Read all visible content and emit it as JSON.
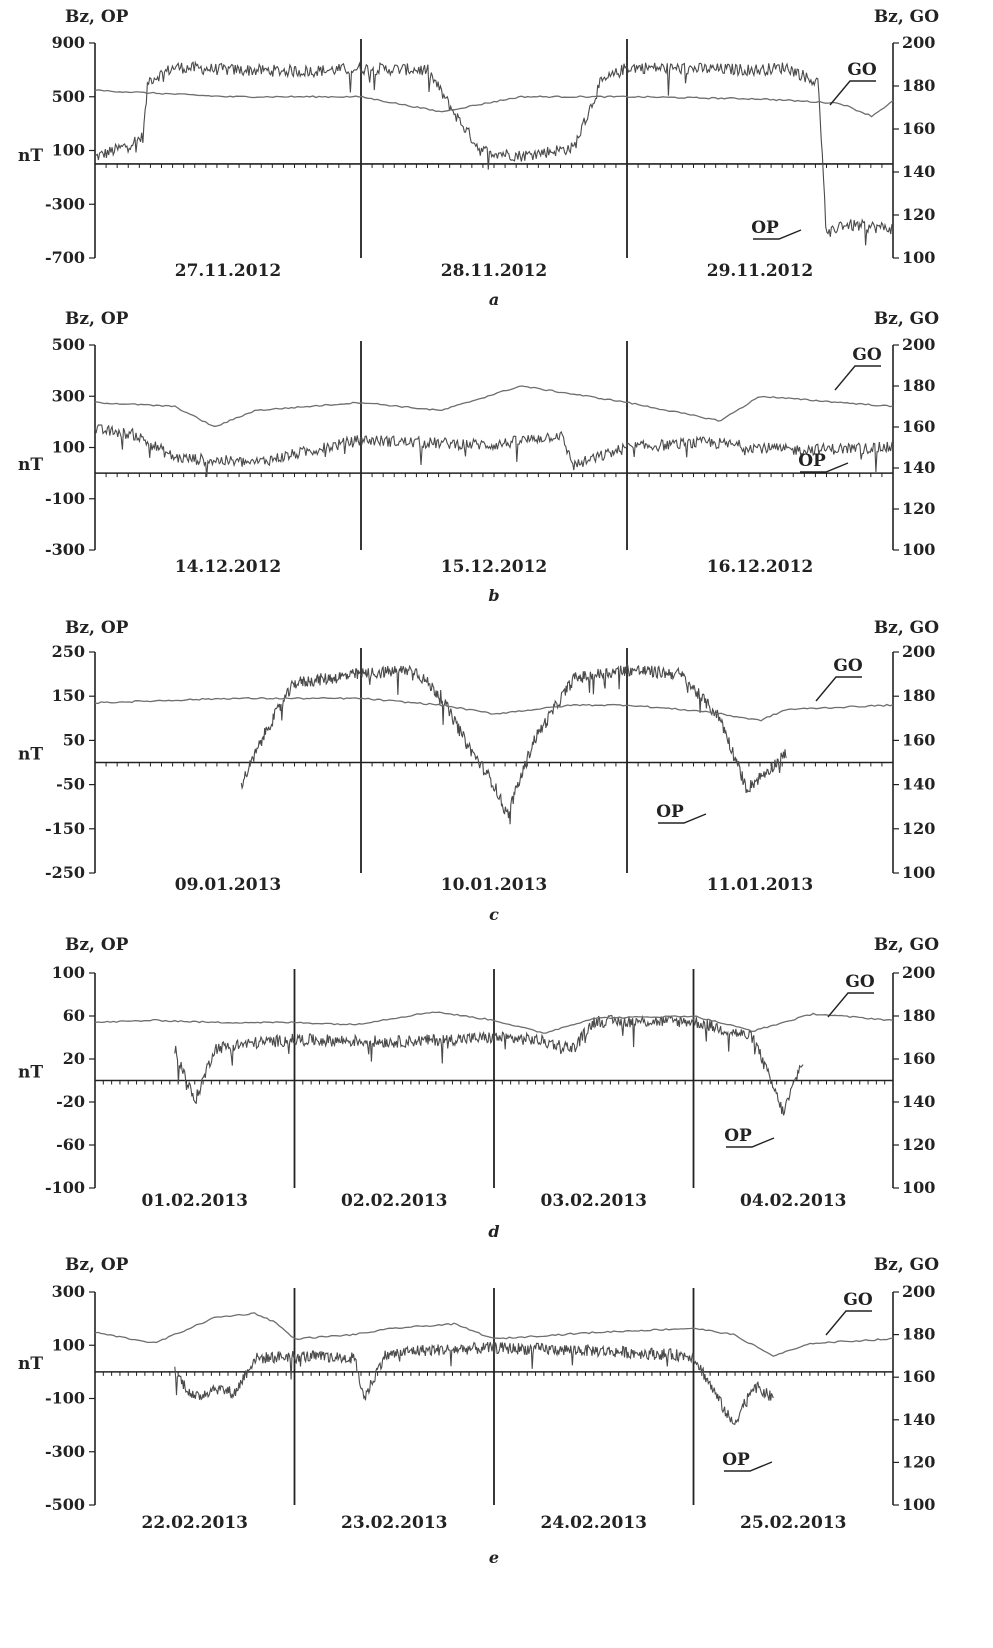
{
  "chart_data": [
    {
      "type": "line",
      "panel_letter": "a",
      "left_axis_title": "Bz, OP",
      "right_axis_title": "Bz, GO",
      "unit_label": "nT",
      "left_ticks": [
        "900",
        "500",
        "100",
        "-300",
        "-700"
      ],
      "right_ticks": [
        "200",
        "180",
        "160",
        "140",
        "120",
        "100"
      ],
      "ylim_left": [
        -700,
        900
      ],
      "ylim_right": [
        100,
        200
      ],
      "days": [
        "27.11.2012",
        "28.11.2012",
        "29.11.2012"
      ],
      "x_range_days": [
        0,
        3
      ],
      "series": [
        {
          "name": "OP",
          "axis": "left",
          "x": [
            0,
            0.1,
            0.18,
            0.2,
            0.3,
            0.5,
            0.8,
            1.0,
            1.25,
            1.35,
            1.45,
            1.6,
            1.8,
            1.9,
            2.0,
            2.2,
            2.5,
            2.6,
            2.72,
            2.75,
            2.8,
            3.0
          ],
          "y": [
            50,
            120,
            200,
            620,
            720,
            700,
            690,
            710,
            700,
            380,
            100,
            60,
            120,
            600,
            720,
            710,
            700,
            720,
            600,
            -550,
            -450,
            -480
          ]
        },
        {
          "name": "GO",
          "axis": "right",
          "x": [
            0,
            0.5,
            1.0,
            1.3,
            1.6,
            2.0,
            2.5,
            2.8,
            2.92,
            3.0
          ],
          "y": [
            178,
            175,
            175,
            168,
            175,
            175,
            174,
            172,
            166,
            173
          ]
        }
      ]
    },
    {
      "type": "line",
      "panel_letter": "b",
      "left_axis_title": "Bz, OP",
      "right_axis_title": "Bz, GO",
      "unit_label": "nT",
      "left_ticks": [
        "500",
        "300",
        "100",
        "-100",
        "-300"
      ],
      "right_ticks": [
        "200",
        "180",
        "160",
        "140",
        "120",
        "100"
      ],
      "ylim_left": [
        -300,
        500
      ],
      "ylim_right": [
        100,
        200
      ],
      "days": [
        "14.12.2012",
        "15.12.2012",
        "16.12.2012"
      ],
      "x_range_days": [
        0,
        3
      ],
      "series": [
        {
          "name": "OP",
          "axis": "left",
          "x": [
            0,
            0.15,
            0.3,
            0.6,
            1.0,
            1.2,
            1.5,
            1.75,
            1.8,
            2.0,
            2.3,
            2.6,
            3.0
          ],
          "y": [
            170,
            150,
            60,
            40,
            130,
            120,
            110,
            150,
            30,
            100,
            120,
            90,
            100
          ]
        },
        {
          "name": "GO",
          "axis": "right",
          "x": [
            0,
            0.3,
            0.45,
            0.6,
            1.0,
            1.3,
            1.6,
            2.0,
            2.35,
            2.5,
            3.0
          ],
          "y": [
            172,
            170,
            160,
            168,
            172,
            168,
            180,
            172,
            163,
            175,
            170
          ]
        }
      ]
    },
    {
      "type": "line",
      "panel_letter": "c",
      "left_axis_title": "Bz, OP",
      "right_axis_title": "Bz, GO",
      "unit_label": "nT",
      "left_ticks": [
        "250",
        "150",
        "50",
        "-50",
        "-150",
        "-250"
      ],
      "right_ticks": [
        "200",
        "180",
        "160",
        "140",
        "120",
        "100"
      ],
      "ylim_left": [
        -250,
        250
      ],
      "ylim_right": [
        100,
        200
      ],
      "days": [
        "09.01.2013",
        "10.01.2013",
        "11.01.2013"
      ],
      "x_range_days": [
        0,
        3
      ],
      "series": [
        {
          "name": "OP",
          "axis": "left",
          "x": [
            0.55,
            0.65,
            0.75,
            1.0,
            1.2,
            1.3,
            1.4,
            1.5,
            1.55,
            1.65,
            1.8,
            2.0,
            2.2,
            2.35,
            2.45,
            2.6
          ],
          "y": [
            -50,
            80,
            180,
            200,
            210,
            150,
            40,
            -50,
            -120,
            50,
            190,
            210,
            200,
            100,
            -60,
            20
          ]
        },
        {
          "name": "GO",
          "axis": "right",
          "x": [
            0,
            0.5,
            1.0,
            1.3,
            1.5,
            1.8,
            2.0,
            2.3,
            2.5,
            2.6,
            3.0
          ],
          "y": [
            177,
            179,
            179,
            176,
            172,
            176,
            176,
            173,
            169,
            174,
            176
          ]
        }
      ]
    },
    {
      "type": "line",
      "panel_letter": "d",
      "left_axis_title": "Bz, OP",
      "right_axis_title": "Bz, GO",
      "unit_label": "nT",
      "left_ticks": [
        "100",
        "60",
        "20",
        "-20",
        "-60",
        "-100"
      ],
      "right_ticks": [
        "200",
        "180",
        "160",
        "140",
        "120",
        "100"
      ],
      "ylim_left": [
        -100,
        100
      ],
      "ylim_right": [
        100,
        200
      ],
      "days": [
        "01.02.2013",
        "02.02.2013",
        "03.02.2013",
        "04.02.2013"
      ],
      "x_range_days": [
        0,
        4
      ],
      "series": [
        {
          "name": "OP",
          "axis": "left",
          "x": [
            0.4,
            0.5,
            0.6,
            0.8,
            1.0,
            1.5,
            2.0,
            2.2,
            2.4,
            2.5,
            2.8,
            3.0,
            3.3,
            3.45,
            3.55
          ],
          "y": [
            30,
            -20,
            30,
            35,
            38,
            36,
            40,
            38,
            30,
            55,
            55,
            55,
            40,
            -30,
            20
          ]
        },
        {
          "name": "GO",
          "axis": "right",
          "x": [
            0,
            0.3,
            0.6,
            1.0,
            1.3,
            1.7,
            2.0,
            2.25,
            2.5,
            3.0,
            3.3,
            3.6,
            4.0
          ],
          "y": [
            177,
            178,
            177,
            177,
            176,
            182,
            178,
            172,
            179,
            180,
            173,
            181,
            178
          ]
        }
      ]
    },
    {
      "type": "line",
      "panel_letter": "e",
      "left_axis_title": "Bz, OP",
      "right_axis_title": "Bz, GO",
      "unit_label": "nT",
      "left_ticks": [
        "300",
        "100",
        "-100",
        "-300",
        "-500"
      ],
      "right_ticks": [
        "200",
        "180",
        "160",
        "140",
        "120",
        "100"
      ],
      "ylim_left": [
        -500,
        300
      ],
      "ylim_right": [
        100,
        200
      ],
      "days": [
        "22.02.2013",
        "23.02.2013",
        "24.02.2013",
        "25.02.2013"
      ],
      "x_range_days": [
        0,
        4
      ],
      "series": [
        {
          "name": "OP",
          "axis": "left",
          "x": [
            0.4,
            0.5,
            0.6,
            0.7,
            0.8,
            1.0,
            1.3,
            1.35,
            1.45,
            1.6,
            2.0,
            2.5,
            3.0,
            3.2,
            3.3,
            3.4
          ],
          "y": [
            0,
            -100,
            -60,
            -80,
            50,
            60,
            50,
            -100,
            60,
            80,
            90,
            80,
            60,
            -200,
            -50,
            -100
          ]
        },
        {
          "name": "GO",
          "axis": "right",
          "x": [
            0,
            0.3,
            0.6,
            0.8,
            0.9,
            1.0,
            1.3,
            1.5,
            1.8,
            2.0,
            2.5,
            3.0,
            3.2,
            3.4,
            3.6,
            4.0
          ],
          "y": [
            181,
            176,
            188,
            190,
            186,
            178,
            180,
            183,
            185,
            178,
            181,
            183,
            180,
            170,
            176,
            178
          ]
        }
      ]
    }
  ],
  "labels": {
    "op": "OP",
    "go": "GO"
  }
}
